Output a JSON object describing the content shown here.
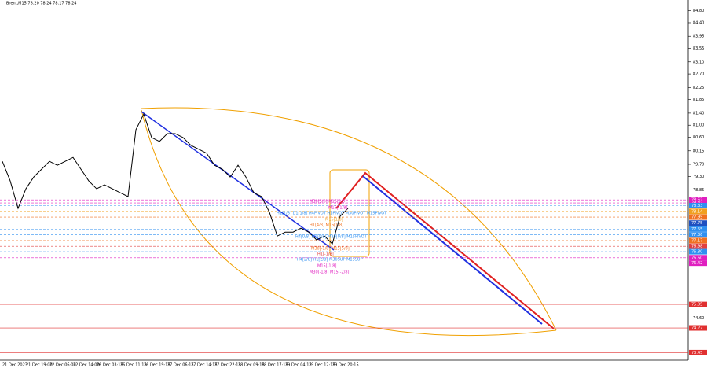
{
  "chart_data": {
    "type": "line",
    "title": "Brent,M15  78.20 78.24 78.17 78.24",
    "categories": [
      "21 Dec 2023",
      null,
      null,
      "21 Dec 19:00",
      null,
      null,
      "22 Dec 06:00",
      null,
      null,
      "22 Dec 14:00",
      null,
      null,
      "26 Dec 03:15",
      null,
      null,
      "26 Dec 11:15",
      null,
      null,
      "26 Dec 19:15",
      null,
      null,
      "27 Dec 06:15",
      null,
      null,
      "27 Dec 14:15",
      null,
      null,
      "27 Dec 22:15",
      null,
      null,
      "28 Dec 09:15",
      null,
      null,
      "28 Dec 17:15",
      null,
      null,
      "29 Dec 04:15",
      null,
      null,
      "29 Dec 12:15",
      null,
      null,
      "29 Dec 20:15",
      null,
      null
    ],
    "series": [
      {
        "name": "Brent,M15",
        "color": "#000000",
        "values": [
          79.8,
          79.15,
          78.24,
          78.89,
          79.28,
          79.54,
          79.8,
          79.67,
          79.8,
          79.93,
          79.54,
          79.15,
          78.89,
          79.02,
          78.89,
          78.76,
          78.63,
          80.85,
          81.37,
          80.59,
          80.46,
          80.72,
          80.72,
          80.59,
          80.33,
          80.2,
          80.07,
          79.67,
          79.54,
          79.28,
          79.67,
          79.28,
          78.76,
          78.63,
          78.11,
          77.32,
          77.45,
          77.45,
          77.58,
          77.45,
          77.19,
          77.32,
          77.06,
          77.98,
          78.24
        ]
      }
    ],
    "ylim": [
      73.2,
      85.0
    ],
    "yticks": [
      {
        "value": 84.8,
        "label": "84.80"
      },
      {
        "value": 84.4,
        "label": "84.40"
      },
      {
        "value": 83.95,
        "label": "83.95"
      },
      {
        "value": 83.55,
        "label": "83.55"
      },
      {
        "value": 83.1,
        "label": "83.10"
      },
      {
        "value": 82.7,
        "label": "82.70"
      },
      {
        "value": 82.25,
        "label": "82.25"
      },
      {
        "value": 81.85,
        "label": "81.85"
      },
      {
        "value": 81.4,
        "label": "81.40"
      },
      {
        "value": 81.0,
        "label": "81.00"
      },
      {
        "value": 80.6,
        "label": "80.60"
      },
      {
        "value": 80.15,
        "label": "80.15"
      },
      {
        "value": 79.7,
        "label": "79.70"
      },
      {
        "value": 79.3,
        "label": "79.30"
      },
      {
        "value": 78.85,
        "label": "78.85"
      },
      {
        "value": 74.6,
        "label": "74.60"
      }
    ],
    "levels": [
      {
        "value": 78.52,
        "label": "78.52",
        "color": "#e020c0"
      },
      {
        "value": 78.42,
        "label": "78.42",
        "color": "#e020c0"
      },
      {
        "value": 78.33,
        "label": "78.33",
        "color": "#3090f0"
      },
      {
        "value": 78.14,
        "label": "78.14",
        "color": "#f0a020"
      },
      {
        "value": 77.95,
        "label": "77.95",
        "color": "#f07020"
      },
      {
        "value": 77.75,
        "label": "77.75",
        "color": "#2050c0"
      },
      {
        "value": 77.55,
        "label": "77.55",
        "color": "#3090f0"
      },
      {
        "value": 77.36,
        "label": "77.36",
        "color": "#3090f0"
      },
      {
        "value": 77.17,
        "label": "77.17",
        "color": "#f07020"
      },
      {
        "value": 76.98,
        "label": "76.98",
        "color": "#e04040"
      },
      {
        "value": 76.8,
        "label": "76.80",
        "color": "#3090f0"
      },
      {
        "value": 76.6,
        "label": "76.60",
        "color": "#e020c0"
      },
      {
        "value": 76.42,
        "label": "76.42",
        "color": "#e020c0"
      },
      {
        "value": 75.05,
        "label": "75.05",
        "color": "#e03030"
      },
      {
        "value": 74.27,
        "label": "74.27",
        "color": "#e03030"
      },
      {
        "value": 73.45,
        "label": "73.45",
        "color": "#e03030"
      }
    ],
    "annotations": [
      "M30[5/8] M15[2/8]",
      "M15[-1/8]",
      "H1[1/8] D1[1/8] H4PIVOT H1PIVOT M30PIVOT M15PIVOT",
      "M15[1/8]",
      "H1[4/8] M15[1/8]",
      "H4[0/8] D1[0/8] M30[0/8] M15PIVOT",
      "M30[-1/8] M15[5/8]",
      "H1[-1/8]",
      "H4[2/8] H1[2/8] M30SUP M15SUP",
      "M15[-1/8]",
      "M30[-1/8] M15[-2/8]"
    ],
    "grid": false
  }
}
